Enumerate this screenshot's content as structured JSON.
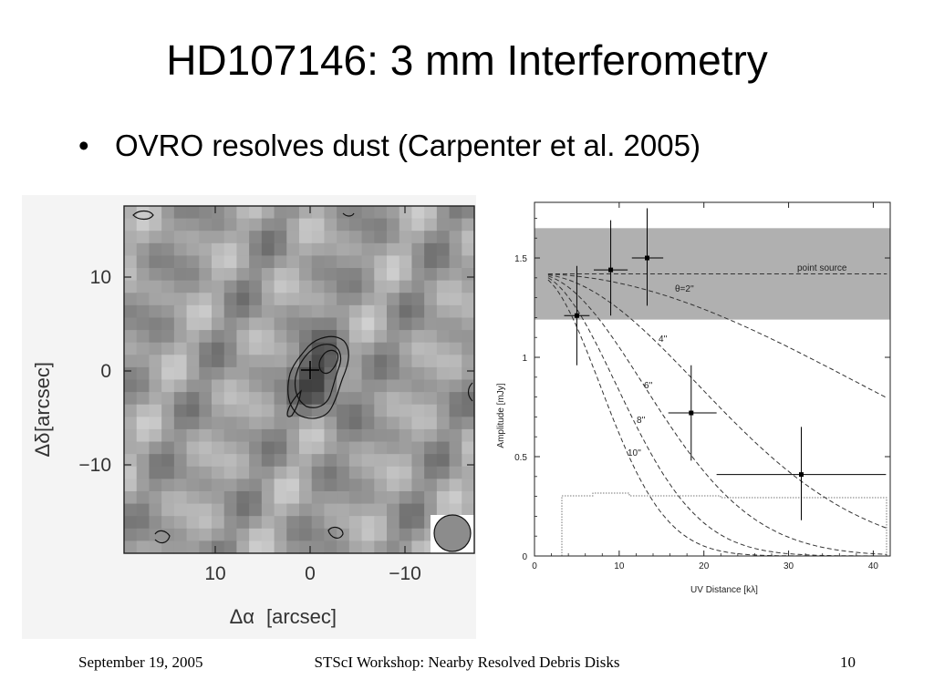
{
  "slide": {
    "title": "HD107146: 3 mm Interferometry",
    "bullets": [
      {
        "symbol": "•",
        "text": "OVRO resolves dust (Carpenter et al. 2005)"
      }
    ]
  },
  "footer": {
    "date": "September 19, 2005",
    "center": "STScI Workshop: Nearby Resolved Debris Disks",
    "page": "10"
  },
  "map_panel": {
    "x_ticks": [
      "10",
      "0",
      "−10"
    ],
    "y_ticks": [
      "10",
      "0",
      "−10"
    ],
    "xlabel_symbol": "Δα",
    "xlabel_unit": "[arcsec]",
    "ylabel_symbol": "Δδ",
    "ylabel_unit": "[arcsec]"
  },
  "chart_data": {
    "type": "scatter",
    "xlabel": "UV Distance  [kλ]",
    "ylabel": "Amplitude  [mJy]",
    "xlim": [
      0,
      42
    ],
    "ylim": [
      0,
      1.78
    ],
    "x_ticks": [
      0,
      10,
      20,
      30,
      40
    ],
    "y_ticks": [
      0,
      0.5,
      1,
      1.5
    ],
    "x_tick_labels": [
      "0",
      "10",
      "20",
      "30",
      "40"
    ],
    "y_tick_labels": [
      "0",
      "0.5",
      "1",
      "1.5"
    ],
    "points": [
      {
        "x": 5.0,
        "y": 1.21,
        "xerr": [
          3.5,
          6.5
        ],
        "yerr": [
          0.96,
          1.46
        ]
      },
      {
        "x": 9.0,
        "y": 1.44,
        "xerr": [
          7.0,
          11.0
        ],
        "yerr": [
          1.21,
          1.69
        ]
      },
      {
        "x": 13.3,
        "y": 1.5,
        "xerr": [
          11.5,
          15.2
        ],
        "yerr": [
          1.26,
          1.75
        ]
      },
      {
        "x": 18.5,
        "y": 0.72,
        "xerr": [
          15.8,
          21.5
        ],
        "yerr": [
          0.48,
          0.96
        ]
      },
      {
        "x": 31.5,
        "y": 0.41,
        "xerr": [
          21.5,
          41.5
        ],
        "yerr": [
          0.18,
          0.65
        ]
      }
    ],
    "shaded_band": {
      "y_low": 1.19,
      "y_high": 1.65
    },
    "point_source_level": 1.42,
    "models": [
      {
        "label": "point source",
        "theta_arcsec": 0
      },
      {
        "label": "θ=2''",
        "theta_arcsec": 2
      },
      {
        "label": "4''",
        "theta_arcsec": 4
      },
      {
        "label": "6''",
        "theta_arcsec": 6
      },
      {
        "label": "8''",
        "theta_arcsec": 8
      },
      {
        "label": "10''",
        "theta_arcsec": 10
      }
    ],
    "grid": false
  }
}
